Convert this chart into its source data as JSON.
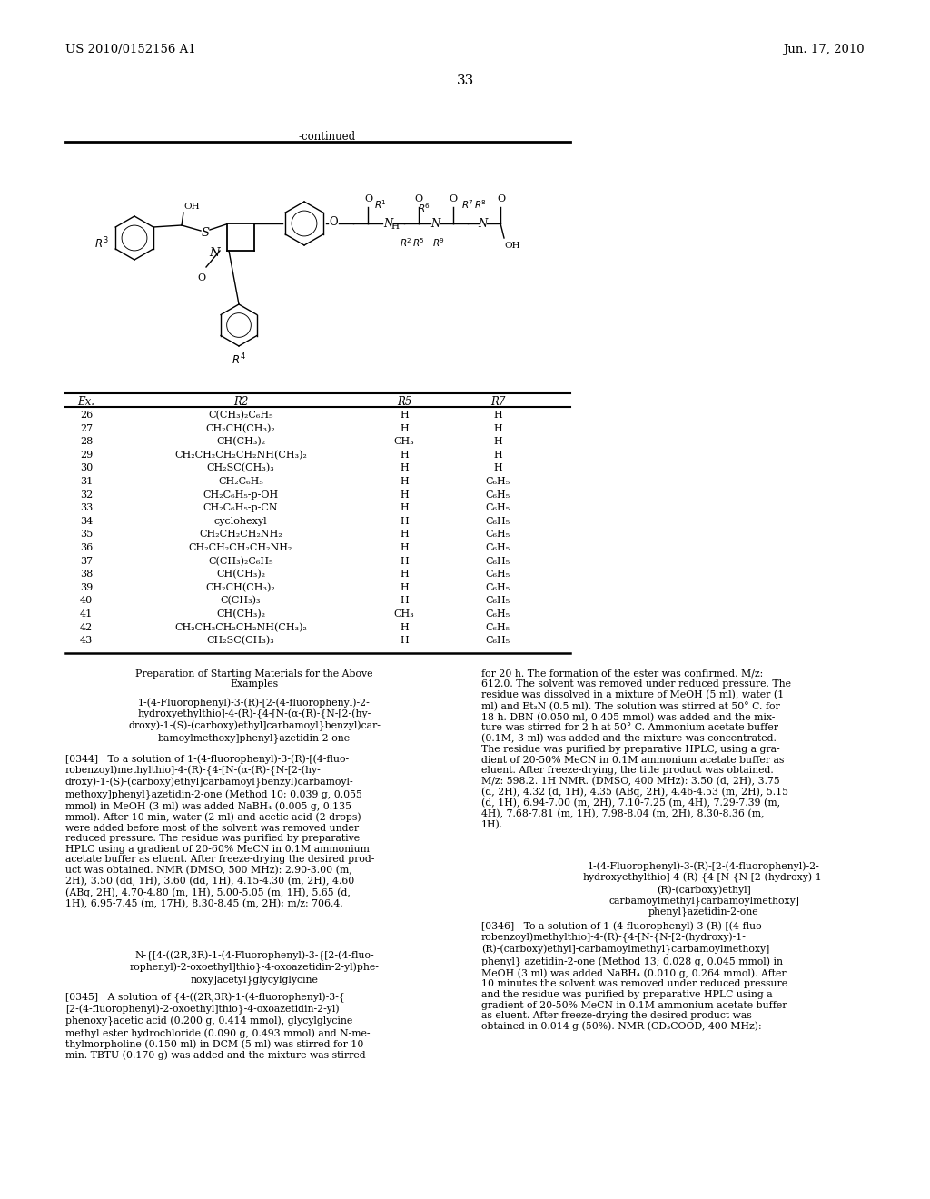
{
  "patent_number": "US 2010/0152156 A1",
  "date": "Jun. 17, 2010",
  "page_number": "33",
  "continued_label": "-continued",
  "table_header": [
    "Ex.",
    "R2",
    "R5",
    "R7"
  ],
  "table_rows": [
    [
      "26",
      "C(CH₃)₂C₆H₅",
      "H",
      "H"
    ],
    [
      "27",
      "CH₂CH(CH₃)₂",
      "H",
      "H"
    ],
    [
      "28",
      "CH(CH₃)₂",
      "CH₃",
      "H"
    ],
    [
      "29",
      "CH₂CH₂CH₂CH₂NH(CH₃)₂",
      "H",
      "H"
    ],
    [
      "30",
      "CH₂SC(CH₃)₃",
      "H",
      "H"
    ],
    [
      "31",
      "CH₂C₆H₅",
      "H",
      "C₆H₅"
    ],
    [
      "32",
      "CH₂C₆H₅-p-OH",
      "H",
      "C₆H₅"
    ],
    [
      "33",
      "CH₂C₆H₅-p-CN",
      "H",
      "C₆H₅"
    ],
    [
      "34",
      "cyclohexyl",
      "H",
      "C₆H₅"
    ],
    [
      "35",
      "CH₂CH₂CH₂NH₂",
      "H",
      "C₆H₅"
    ],
    [
      "36",
      "CH₂CH₂CH₂CH₂NH₂",
      "H",
      "C₆H₅"
    ],
    [
      "37",
      "C(CH₃)₂C₆H₅",
      "H",
      "C₆H₅"
    ],
    [
      "38",
      "CH(CH₃)₂",
      "H",
      "C₆H₅"
    ],
    [
      "39",
      "CH₂CH(CH₃)₂",
      "H",
      "C₆H₅"
    ],
    [
      "40",
      "C(CH₃)₃",
      "H",
      "C₆H₅"
    ],
    [
      "41",
      "CH(CH₃)₂",
      "CH₃",
      "C₆H₅"
    ],
    [
      "42",
      "CH₂CH₂CH₂CH₂NH(CH₃)₂",
      "H",
      "C₆H₅"
    ],
    [
      "43",
      "CH₂SC(CH₃)₃",
      "H",
      "C₆H₅"
    ]
  ],
  "left_col_title": "Preparation of Starting Materials for the Above\nExamples",
  "left_col_subtitle": "1-(4-Fluorophenyl)-3-(R)-[2-(4-fluorophenyl)-2-\nhydroxyethylthio]-4-(R)-{4-[N-(α-(R)-{N-[2-(hy-\ndroxy)-1-(S)-(carboxy)ethyl]carbamoyl}benzyl)car-\nbamoylmethoxy]phenyl}azetidin-2-one",
  "left_col_para344": "[0344]   To a solution of 1-(4-fluorophenyl)-3-(R)-[(4-fluo-\nrobenzoyl)methylthio]-4-(R)-{4-[N-(α-(R)-{N-[2-(hy-\ndroxy)-1-(S)-(carboxy)ethyl]carbamoyl}benzyl)carbamoyl-\nmethoxy]phenyl}azetidin-2-one (Method 10; 0.039 g, 0.055\nmmol) in MeOH (3 ml) was added NaBH₄ (0.005 g, 0.135\nmmol). After 10 min, water (2 ml) and acetic acid (2 drops)\nwere added before most of the solvent was removed under\nreduced pressure. The residue was purified by preparative\nHPLC using a gradient of 20-60% MeCN in 0.1M ammonium\nacetate buffer as eluent. After freeze-drying the desired prod-\nuct was obtained. NMR (DMSO, 500 MHz): 2.90-3.00 (m,\n2H), 3.50 (dd, 1H), 3.60 (dd, 1H), 4.15-4.30 (m, 2H), 4.60\n(ABq, 2H), 4.70-4.80 (m, 1H), 5.00-5.05 (m, 1H), 5.65 (d,\n1H), 6.95-7.45 (m, 17H), 8.30-8.45 (m, 2H); m/z: 706.4.",
  "left_col_subtitle2": "N-{[4-((2R,3R)-1-(4-Fluorophenyl)-3-{[2-(4-fluo-\nrophenyl)-2-oxoethyl]thio}-4-oxoazetidin-2-yl)phe-\nnoxy]acetyl}glycylglycine",
  "left_col_para345": "[0345]   A solution of {4-((2R,3R)-1-(4-fluorophenyl)-3-{\n[2-(4-fluorophenyl)-2-oxoethyl]thio}-4-oxoazetidin-2-yl)\nphenoxy}acetic acid (0.200 g, 0.414 mmol), glycylglycine\nmethyl ester hydrochloride (0.090 g, 0.493 mmol) and N-me-\nthylmorpholine (0.150 ml) in DCM (5 ml) was stirred for 10\nmin. TBTU (0.170 g) was added and the mixture was stirred",
  "right_col_para344cont": "for 20 h. The formation of the ester was confirmed. M/z:\n612.0. The solvent was removed under reduced pressure. The\nresidue was dissolved in a mixture of MeOH (5 ml), water (1\nml) and Et₃N (0.5 ml). The solution was stirred at 50° C. for\n18 h. DBN (0.050 ml, 0.405 mmol) was added and the mix-\nture was stirred for 2 h at 50° C. Ammonium acetate buffer\n(0.1M, 3 ml) was added and the mixture was concentrated.\nThe residue was purified by preparative HPLC, using a gra-\ndient of 20-50% MeCN in 0.1M ammonium acetate buffer as\neluent. After freeze-drying, the title product was obtained.\nM/z: 598.2. 1H NMR. (DMSO, 400 MHz): 3.50 (d, 2H), 3.75\n(d, 2H), 4.32 (d, 1H), 4.35 (ABq, 2H), 4.46-4.53 (m, 2H), 5.15\n(d, 1H), 6.94-7.00 (m, 2H), 7.10-7.25 (m, 4H), 7.29-7.39 (m,\n4H), 7.68-7.81 (m, 1H), 7.98-8.04 (m, 2H), 8.30-8.36 (m,\n1H).",
  "right_col_subtitle2": "1-(4-Fluorophenyl)-3-(R)-[2-(4-fluorophenyl)-2-\nhydroxyethylthio]-4-(R)-{4-[N-{N-[2-(hydroxy)-1-\n(R)-(carboxy)ethyl]\ncarbamoylmethyl}carbamoylmethoxy]\nphenyl}azetidin-2-one",
  "right_col_para346": "[0346]   To a solution of 1-(4-fluorophenyl)-3-(R)-[(4-fluo-\nrobenzoyl)methylthio]-4-(R)-{4-[N-{N-[2-(hydroxy)-1-\n(R)-(carboxy)ethyl]-carbamoylmethyl}carbamoylmethoxy]\nphenyl} azetidin-2-one (Method 13; 0.028 g, 0.045 mmol) in\nMeOH (3 ml) was added NaBH₄ (0.010 g, 0.264 mmol). After\n10 minutes the solvent was removed under reduced pressure\nand the residue was purified by preparative HPLC using a\ngradient of 20-50% MeCN in 0.1M ammonium acetate buffer\nas eluent. After freeze-drying the desired product was\nobtained in 0.014 g (50%). NMR (CD₃COOD, 400 MHz):",
  "background_color": "#ffffff",
  "text_color": "#000000"
}
